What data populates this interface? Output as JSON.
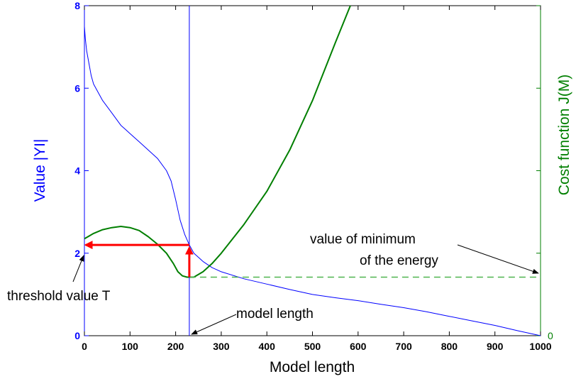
{
  "chart_data": {
    "type": "line",
    "xlabel": "Model length",
    "ylabel": "Value |YI|",
    "y2label": "Cost function J(M)",
    "xlim": [
      0,
      1000
    ],
    "ylim": [
      0,
      8
    ],
    "x_ticks": [
      "0",
      "100",
      "200",
      "300",
      "400",
      "500",
      "600",
      "700",
      "800",
      "900",
      "1000"
    ],
    "y_ticks": [
      "0",
      "2",
      "4",
      "6",
      "8"
    ],
    "y2_tick": "0",
    "grid": false,
    "legend": "none",
    "colors": {
      "value": "#0000ff",
      "cost": "#007f00",
      "arrow": "#ff0000",
      "text": "#000000"
    },
    "series": [
      {
        "axis": "left",
        "style": "thin-solid",
        "points": [
          [
            0,
            7.5
          ],
          [
            2,
            7.2
          ],
          [
            5,
            6.9
          ],
          [
            10,
            6.6
          ],
          [
            15,
            6.3
          ],
          [
            20,
            6.1
          ],
          [
            30,
            5.9
          ],
          [
            40,
            5.7
          ],
          [
            50,
            5.55
          ],
          [
            60,
            5.4
          ],
          [
            70,
            5.25
          ],
          [
            80,
            5.1
          ],
          [
            90,
            5.0
          ],
          [
            100,
            4.9
          ],
          [
            120,
            4.7
          ],
          [
            140,
            4.5
          ],
          [
            160,
            4.3
          ],
          [
            180,
            4.0
          ],
          [
            190,
            3.75
          ],
          [
            200,
            3.3
          ],
          [
            210,
            2.8
          ],
          [
            220,
            2.45
          ],
          [
            230,
            2.2
          ],
          [
            240,
            2.0
          ],
          [
            260,
            1.8
          ],
          [
            280,
            1.65
          ],
          [
            300,
            1.55
          ],
          [
            350,
            1.38
          ],
          [
            400,
            1.25
          ],
          [
            450,
            1.12
          ],
          [
            500,
            1.0
          ],
          [
            550,
            0.92
          ],
          [
            600,
            0.85
          ],
          [
            650,
            0.76
          ],
          [
            700,
            0.68
          ],
          [
            750,
            0.58
          ],
          [
            800,
            0.47
          ],
          [
            850,
            0.36
          ],
          [
            900,
            0.25
          ],
          [
            950,
            0.12
          ],
          [
            1000,
            0.0
          ]
        ]
      },
      {
        "axis": "right",
        "style": "thick-solid",
        "points": [
          [
            0,
            2.35
          ],
          [
            20,
            2.48
          ],
          [
            40,
            2.57
          ],
          [
            60,
            2.62
          ],
          [
            80,
            2.65
          ],
          [
            100,
            2.62
          ],
          [
            120,
            2.55
          ],
          [
            140,
            2.4
          ],
          [
            160,
            2.22
          ],
          [
            180,
            2.0
          ],
          [
            195,
            1.75
          ],
          [
            205,
            1.55
          ],
          [
            215,
            1.45
          ],
          [
            225,
            1.42
          ],
          [
            240,
            1.42
          ],
          [
            260,
            1.55
          ],
          [
            280,
            1.75
          ],
          [
            300,
            2.0
          ],
          [
            350,
            2.7
          ],
          [
            400,
            3.5
          ],
          [
            450,
            4.5
          ],
          [
            500,
            5.7
          ],
          [
            550,
            7.1
          ],
          [
            583,
            8.0
          ]
        ]
      },
      {
        "axis": "right",
        "style": "dashed",
        "points": [
          [
            230,
            1.42
          ],
          [
            1000,
            1.42
          ]
        ]
      }
    ],
    "vertical_line": {
      "x": 230
    },
    "red_arrows": [
      {
        "from": [
          230,
          1.42
        ],
        "to": [
          230,
          2.2
        ]
      },
      {
        "from": [
          230,
          2.2
        ],
        "to": [
          0,
          2.2
        ]
      }
    ],
    "annotations": [
      {
        "text": "threshold value T",
        "points_to": [
          0,
          2.2
        ]
      },
      {
        "text": "model length",
        "points_to": [
          230,
          0
        ]
      },
      {
        "text": "value of minimum",
        "line2": "of the energy",
        "points_to": [
          1000,
          1.42
        ]
      }
    ]
  }
}
